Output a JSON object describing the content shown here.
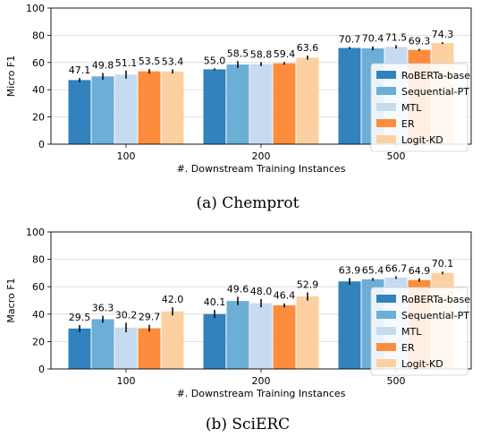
{
  "colors": {
    "series": [
      "#3282bd",
      "#6baed6",
      "#c6dbef",
      "#fd8d3c",
      "#fdd0a2"
    ],
    "grid": "#d9d9d9",
    "error_bar": "#000000"
  },
  "chart_data": [
    {
      "type": "bar",
      "caption": "(a) Chemprot",
      "xlabel": "#. Downstream Training Instances",
      "ylabel": "Micro F1",
      "categories": [
        "100",
        "200",
        "500"
      ],
      "ylim": [
        0,
        100
      ],
      "yticks": [
        "0",
        "20",
        "40",
        "60",
        "80",
        "100"
      ],
      "grid": true,
      "legend_position": "right",
      "series": [
        {
          "name": "RoBERTa-base",
          "values": [
            47.1,
            55.0,
            70.7
          ],
          "errors": [
            3,
            1.5,
            1.5
          ]
        },
        {
          "name": "Sequential-PT",
          "values": [
            49.8,
            58.5,
            70.4
          ],
          "errors": [
            5,
            5,
            3
          ]
        },
        {
          "name": "MTL",
          "values": [
            51.1,
            58.8,
            71.5
          ],
          "errors": [
            6,
            3,
            2.5
          ]
        },
        {
          "name": "ER",
          "values": [
            53.5,
            59.4,
            69.3
          ],
          "errors": [
            3.5,
            2,
            1.5
          ]
        },
        {
          "name": "Logit-KD",
          "values": [
            53.4,
            63.6,
            74.3
          ],
          "errors": [
            3,
            3,
            1.5
          ]
        }
      ],
      "labels": [
        [
          "47.1",
          "55.0",
          "70.7"
        ],
        [
          "49.8",
          "58.5",
          "70.4"
        ],
        [
          "51.1",
          "58.8",
          "71.5"
        ],
        [
          "53.5",
          "59.4",
          "69.3"
        ],
        [
          "53.4",
          "63.6",
          "74.3"
        ]
      ]
    },
    {
      "type": "bar",
      "caption": "(b) SciERC",
      "xlabel": "#. Downstream Training Instances",
      "ylabel": "Macro F1",
      "categories": [
        "100",
        "200",
        "500"
      ],
      "ylim": [
        0,
        100
      ],
      "yticks": [
        "0",
        "20",
        "40",
        "60",
        "80",
        "100"
      ],
      "grid": true,
      "legend_position": "right",
      "series": [
        {
          "name": "RoBERTa-base",
          "values": [
            29.5,
            40.1,
            63.9
          ],
          "errors": [
            5,
            6,
            5
          ]
        },
        {
          "name": "Sequential-PT",
          "values": [
            36.3,
            49.6,
            65.4
          ],
          "errors": [
            5,
            6,
            2
          ]
        },
        {
          "name": "MTL",
          "values": [
            30.2,
            48.0,
            66.7
          ],
          "errors": [
            7,
            6,
            2
          ]
        },
        {
          "name": "ER",
          "values": [
            29.7,
            46.4,
            64.9
          ],
          "errors": [
            5,
            3,
            2.5
          ]
        },
        {
          "name": "Logit-KD",
          "values": [
            42.0,
            52.9,
            70.1
          ],
          "errors": [
            6,
            6,
            2
          ]
        }
      ],
      "labels": [
        [
          "29.5",
          "40.1",
          "63.9"
        ],
        [
          "36.3",
          "49.6",
          "65.4"
        ],
        [
          "30.2",
          "48.0",
          "66.7"
        ],
        [
          "29.7",
          "46.4",
          "64.9"
        ],
        [
          "42.0",
          "52.9",
          "70.1"
        ]
      ]
    }
  ]
}
